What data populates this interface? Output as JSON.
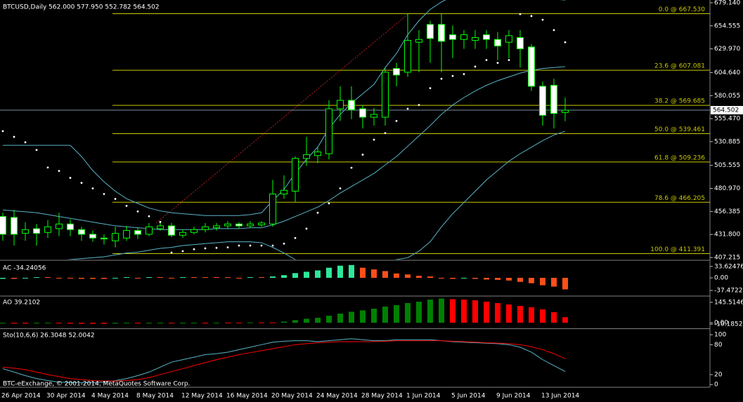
{
  "chart_data": [
    {
      "type": "candlestick",
      "title": "BTCUSD,Daily  562.000 577.950 552.782 564.502",
      "categories": [
        "26 Apr 2014",
        null,
        null,
        null,
        "30 Apr 2014",
        null,
        null,
        null,
        "4 May 2014",
        null,
        null,
        null,
        "8 May 2014",
        null,
        null,
        null,
        "12 May 2014",
        null,
        null,
        null,
        "16 May 2014",
        null,
        null,
        null,
        "20 May 2014",
        null,
        null,
        null,
        "24 May 2014",
        null,
        null,
        null,
        "28 May 2014",
        null,
        null,
        null,
        "1 Jun 2014",
        null,
        null,
        null,
        "5 Jun 2014",
        null,
        null,
        null,
        "9 Jun 2014",
        null,
        null,
        null,
        "13 Jun 2014",
        null,
        null
      ],
      "open": [
        451,
        450,
        433,
        438,
        434,
        438,
        443,
        437,
        432,
        428,
        425,
        428,
        436,
        432,
        438,
        441,
        431,
        434,
        437,
        439,
        441,
        443,
        441,
        442,
        443,
        475,
        478,
        513,
        516,
        518,
        566,
        575,
        566,
        557,
        557,
        609,
        605,
        637,
        656,
        656,
        645,
        640,
        639,
        645,
        640,
        637,
        642,
        632,
        590,
        591,
        562
      ],
      "high": [
        455,
        458,
        445,
        443,
        447,
        455,
        448,
        440,
        436,
        432,
        440,
        441,
        439,
        444,
        446,
        444,
        437,
        440,
        444,
        444,
        446,
        445,
        446,
        446,
        490,
        495,
        515,
        536,
        525,
        575,
        590,
        590,
        570,
        567,
        610,
        615,
        668,
        650,
        660,
        668,
        655,
        650,
        650,
        650,
        648,
        650,
        650,
        635,
        595,
        598,
        577.95
      ],
      "low": [
        425,
        420,
        425,
        420,
        428,
        430,
        430,
        425,
        424,
        421,
        418,
        425,
        427,
        430,
        436,
        429,
        428,
        432,
        434,
        436,
        438,
        438,
        439,
        440,
        440,
        470,
        466,
        505,
        508,
        512,
        553,
        555,
        545,
        548,
        548,
        590,
        600,
        605,
        615,
        605,
        620,
        630,
        630,
        630,
        618,
        620,
        610,
        585,
        548,
        545,
        552.782
      ],
      "close": [
        432,
        432,
        437,
        433,
        440,
        443,
        437,
        432,
        428,
        427,
        433,
        436,
        432,
        440,
        441,
        431,
        434,
        437,
        440,
        441,
        443,
        441,
        443,
        444,
        475,
        479,
        513,
        517,
        520,
        566,
        575,
        565,
        557,
        560,
        605,
        602,
        639,
        640,
        641,
        638,
        640,
        645,
        642,
        640,
        633,
        644,
        630,
        590,
        559,
        561,
        564.502
      ],
      "candle_color": "#00ff00",
      "up_fill": "#000000",
      "down_fill": "#ffffff",
      "bands": {
        "color": "#5ab4c8",
        "upper": [
          527,
          527,
          527,
          527,
          527,
          527,
          527,
          515,
          500,
          488,
          478,
          470,
          465,
          460,
          457,
          455,
          454,
          453,
          452,
          452,
          452,
          452,
          453,
          455,
          468,
          480,
          497,
          512,
          525,
          545,
          560,
          572,
          582,
          592,
          610,
          625,
          645,
          660,
          672,
          680,
          686,
          690,
          692,
          693,
          692,
          690,
          688,
          686,
          684,
          683,
          682
        ],
        "middle": [
          458,
          457,
          456,
          455,
          453,
          451,
          449,
          447,
          445,
          443,
          441,
          440,
          439,
          438,
          437,
          437,
          437,
          437,
          437,
          438,
          438,
          438,
          439,
          439,
          442,
          446,
          451,
          456,
          461,
          468,
          476,
          483,
          490,
          497,
          506,
          515,
          526,
          537,
          548,
          560,
          570,
          578,
          585,
          591,
          596,
          600,
          604,
          607,
          609,
          610,
          611
        ],
        "lower": [
          395,
          398,
          400,
          402,
          403,
          404,
          405,
          406,
          407,
          408,
          410,
          412,
          413,
          415,
          417,
          418,
          420,
          421,
          422,
          423,
          424,
          424,
          424,
          423,
          418,
          412,
          405,
          400,
          397,
          391,
          392,
          394,
          398,
          402,
          402,
          405,
          407,
          414,
          424,
          440,
          454,
          466,
          478,
          490,
          500,
          510,
          518,
          525,
          532,
          538,
          542
        ]
      },
      "sar": {
        "color": "#ffffff",
        "values": [
          542.1,
          536,
          530.2,
          522,
          503.3,
          499.6,
          492.2,
          486.9,
          481,
          475,
          469.8,
          462.4,
          456.4,
          451.2,
          445.2,
          412.5,
          414,
          416,
          417,
          417.5,
          418,
          420,
          420,
          420,
          420,
          422,
          428,
          438,
          455,
          465,
          481,
          503,
          517,
          533,
          540,
          553,
          566,
          570,
          588,
          598,
          601,
          603,
          611,
          618,
          615,
          618,
          667,
          665,
          661,
          650,
          637
        ]
      },
      "levels": [
        {
          "label": "0.0 @ 667.530",
          "value": 667.53
        },
        {
          "label": "23.6 @ 607.081",
          "value": 607.081
        },
        {
          "label": "38.2 @ 569.685",
          "value": 569.685
        },
        {
          "label": "50.0 @ 539.461",
          "value": 539.461
        },
        {
          "label": "61.8 @ 509.236",
          "value": 509.236
        },
        {
          "label": "78.6 @ 466.205",
          "value": 466.205
        },
        {
          "label": "100.0 @ 411.391",
          "value": 411.391
        }
      ],
      "level_color": "#c8c800",
      "last_price": 564.502,
      "last_price_color": "#7890a0",
      "ylim": [
        405,
        682.1
      ],
      "yticks": [
        {
          "value": 679.14,
          "label": "679.140"
        },
        654.555,
        {
          "value": 629.97,
          "label": "629.970"
        },
        {
          "value": 604.64,
          "label": "604.640"
        },
        580.055,
        {
          "value": 555.47,
          "label": "555.470"
        },
        530.885,
        505.555,
        {
          "value": 480.97,
          "label": "480.970"
        },
        456.385,
        {
          "value": 431.8,
          "label": "431.800"
        },
        407.215
      ]
    },
    {
      "type": "histogram",
      "title": "AC -34.24056",
      "values": [
        -3,
        -3,
        -2,
        2,
        2,
        -2,
        -2,
        -3,
        -3,
        -3,
        -2,
        2,
        -2,
        2,
        2,
        -2,
        2,
        2,
        2,
        2,
        2,
        -2,
        2,
        2,
        4,
        8,
        14,
        18,
        22,
        30,
        36,
        38,
        30,
        25,
        20,
        13,
        10,
        6,
        4,
        -2,
        -3,
        -2,
        -3,
        -5,
        -6,
        -8,
        -12,
        -16,
        -22,
        -26,
        -34.24056
      ],
      "up_color": "#2ee89a",
      "down_color": "#ff4f1a",
      "ylim": [
        -52,
        50
      ],
      "yticks": [
        33.62476,
        {
          "value": 0,
          "label": "0.00"
        },
        -37.47224
      ]
    },
    {
      "type": "histogram",
      "title": "AO 39.2102",
      "values": [
        -5,
        -6,
        -6,
        -5,
        -4,
        -5,
        -6,
        -7,
        -7,
        -7,
        -6,
        -5,
        -5,
        -4,
        -3,
        -3,
        -2,
        -1,
        -1,
        1,
        1,
        1,
        2,
        2,
        2,
        8,
        18,
        28,
        35,
        50,
        65,
        78,
        88,
        100,
        115,
        125,
        140,
        150,
        165,
        172,
        168,
        165,
        160,
        150,
        140,
        130,
        120,
        110,
        95,
        75,
        39.2102
      ],
      "up_color": "#008000",
      "down_color": "#ff0000",
      "ylim": [
        -35,
        185
      ],
      "yticks": [
        145.5146,
        {
          "value": 0,
          "label": "0.00"
        },
        -10.1852
      ]
    },
    {
      "type": "line",
      "title": "Sto(10,6,6) 26.3048 52.0042",
      "annotation": "BTC-eExchange, © 2001-2014, MetaQuotes Software Corp.",
      "series": [
        {
          "color": "#5ab4c8",
          "values": [
            32,
            25,
            18,
            12,
            8,
            5,
            4,
            4,
            4,
            5,
            8,
            12,
            18,
            25,
            35,
            45,
            50,
            55,
            60,
            62,
            65,
            70,
            75,
            80,
            85,
            87,
            88,
            88,
            86,
            88,
            90,
            92,
            90,
            88,
            88,
            90,
            90,
            90,
            90,
            88,
            86,
            85,
            84,
            83,
            82,
            80,
            75,
            65,
            50,
            38,
            26.3048
          ]
        },
        {
          "color": "#ff0000",
          "values": [
            35,
            33,
            30,
            25,
            20,
            16,
            12,
            10,
            8,
            7,
            7,
            8,
            10,
            14,
            20,
            26,
            32,
            38,
            44,
            50,
            55,
            60,
            64,
            68,
            72,
            76,
            80,
            82,
            84,
            85,
            86,
            86,
            86,
            86,
            87,
            88,
            88,
            88,
            88,
            88,
            87,
            86,
            85,
            84,
            83,
            82,
            80,
            76,
            70,
            62,
            52.0042
          ]
        }
      ],
      "ylim": [
        -4,
        110
      ],
      "yticks": [
        100,
        80,
        20,
        0
      ]
    }
  ]
}
